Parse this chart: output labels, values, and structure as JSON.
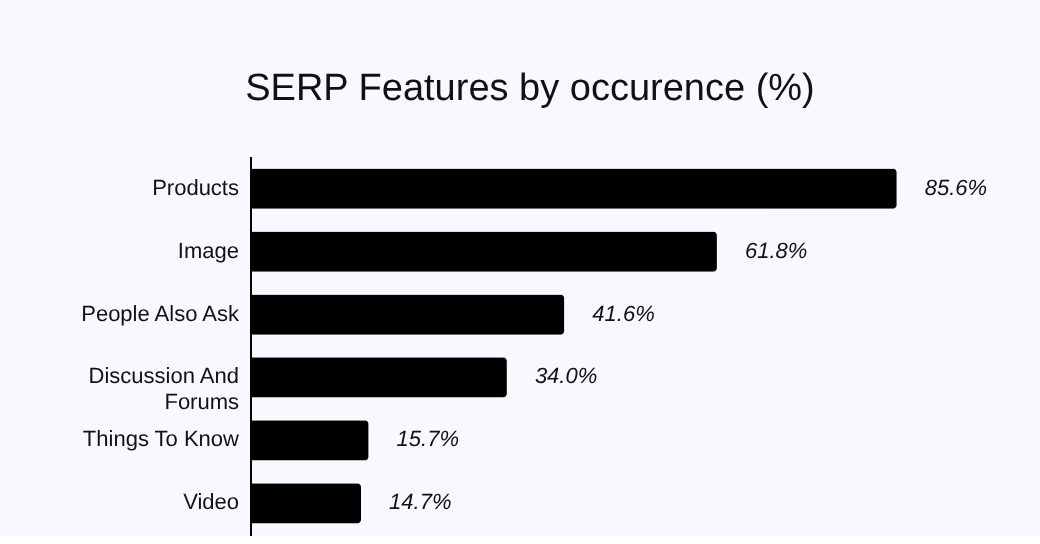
{
  "chart_data": {
    "type": "bar",
    "orientation": "horizontal",
    "title": "SERP Features by occurence (%)",
    "categories": [
      "Products",
      "Image",
      "People Also Ask",
      "Discussion And Forums",
      "Things To Know",
      "Video"
    ],
    "values": [
      85.6,
      61.8,
      41.6,
      34.0,
      15.7,
      14.7
    ],
    "value_labels": [
      "85.6%",
      "61.8%",
      "41.6%",
      "34.0%",
      "15.7%",
      "14.7%"
    ],
    "color": "#000000",
    "tick_labels": "y"
  }
}
